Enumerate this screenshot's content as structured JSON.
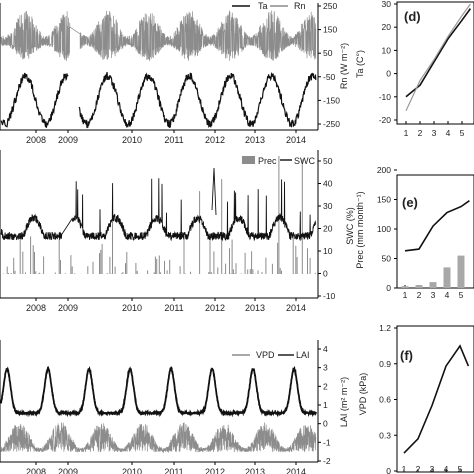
{
  "chart_data": [
    {
      "panel": "",
      "type": "line",
      "ylabel": "Rn (W m⁻²)",
      "y_ticks": [
        "250",
        "150",
        "50",
        "-50",
        "-150",
        "-250"
      ],
      "x_ticks": [
        "2008",
        "2009",
        "2010",
        "2011",
        "2012",
        "2013",
        "2014"
      ],
      "ylim": [
        -250,
        250
      ],
      "series": [
        {
          "name": "Ta",
          "color": "#111111",
          "amplitude": 120,
          "mean": -110
        },
        {
          "name": "Rn",
          "color": "#8c8c8c",
          "amplitude": 110,
          "mean": 140
        }
      ],
      "gap_after_tick": "2009"
    },
    {
      "panel": "",
      "type": "line",
      "ylabel": "SWC (%)",
      "y_ticks": [
        "50",
        "40",
        "30",
        "20",
        "10",
        "0",
        "-10"
      ],
      "x_ticks": [
        "2008",
        "2009",
        "2010",
        "2011",
        "2012",
        "2013",
        "2014"
      ],
      "ylim": [
        -10,
        50
      ],
      "series": [
        {
          "name": "Prec",
          "color": "#8c8c8c",
          "kind": "bar"
        },
        {
          "name": "SWC",
          "color": "#111111",
          "kind": "line"
        }
      ]
    },
    {
      "panel": "",
      "type": "line",
      "ylabel": "LAI (m² m⁻²)",
      "y_ticks": [
        "4",
        "3",
        "2",
        "1",
        "0",
        "-1",
        "-2"
      ],
      "x_ticks": [
        "2008",
        "2009",
        "2010",
        "2011",
        "2012",
        "2013",
        "2014"
      ],
      "ylim": [
        -2,
        4
      ],
      "series": [
        {
          "name": "VPD",
          "color": "#8c8c8c",
          "kind": "line"
        },
        {
          "name": "LAI",
          "color": "#111111",
          "kind": "line"
        }
      ]
    },
    {
      "panel": "(d)",
      "type": "line",
      "ylabel": "Ta (C°)",
      "y_ticks": [
        "30",
        "20",
        "10",
        "0",
        "-10",
        "-20"
      ],
      "x_ticks": [
        "1",
        "2",
        "3",
        "4",
        "5"
      ],
      "ylim": [
        -20,
        30
      ],
      "series": [
        {
          "color": "#111111",
          "x": [
            1,
            2,
            3,
            4,
            5,
            5.6
          ],
          "values": [
            -10,
            -5,
            5,
            15,
            23,
            28
          ]
        },
        {
          "color": "#9a9a9a",
          "x": [
            1,
            2,
            3,
            4,
            5,
            5.6
          ],
          "values": [
            -16,
            -3,
            6,
            16,
            25,
            30
          ]
        }
      ]
    },
    {
      "panel": "(e)",
      "type": "bar",
      "ylabel": "Prec (mm month⁻¹)",
      "y_ticks": [
        "200",
        "150",
        "100",
        "50",
        "0"
      ],
      "x_ticks": [
        "1",
        "2",
        "3",
        "4",
        "5"
      ],
      "ylim": [
        0,
        200
      ],
      "series": [
        {
          "kind": "bar",
          "color": "#a8a8a8",
          "x": [
            1,
            2,
            3,
            4,
            5
          ],
          "values": [
            3,
            5,
            10,
            35,
            55
          ]
        },
        {
          "kind": "line",
          "color": "#111111",
          "x": [
            1,
            2,
            3,
            4,
            5,
            5.6
          ],
          "values": [
            63,
            66,
            105,
            128,
            138,
            148
          ]
        }
      ]
    },
    {
      "panel": "(f)",
      "type": "line",
      "ylabel": "VPD (kPa)",
      "y_ticks": [
        "1.2",
        "0.9",
        "0.6",
        "0.3",
        "0"
      ],
      "x_ticks": [
        "1",
        "2",
        "3",
        "4",
        "5"
      ],
      "ylim": [
        0,
        1.2
      ],
      "series": [
        {
          "color": "#111111",
          "x": [
            1,
            2,
            3,
            4,
            5,
            5.6
          ],
          "values": [
            0.15,
            0.27,
            0.55,
            0.88,
            1.05,
            0.88
          ]
        }
      ]
    }
  ]
}
